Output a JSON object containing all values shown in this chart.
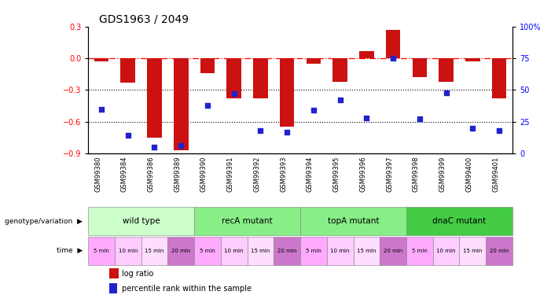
{
  "title": "GDS1963 / 2049",
  "samples": [
    "GSM99380",
    "GSM99384",
    "GSM99386",
    "GSM99389",
    "GSM99390",
    "GSM99391",
    "GSM99392",
    "GSM99393",
    "GSM99394",
    "GSM99395",
    "GSM99396",
    "GSM99397",
    "GSM99398",
    "GSM99399",
    "GSM99400",
    "GSM99401"
  ],
  "log_ratio": [
    -0.03,
    -0.23,
    -0.75,
    -0.87,
    -0.14,
    -0.38,
    -0.38,
    -0.65,
    -0.05,
    -0.22,
    0.07,
    0.27,
    -0.18,
    -0.22,
    -0.03,
    -0.38
  ],
  "percentile": [
    35,
    14,
    5,
    6,
    38,
    47,
    18,
    17,
    34,
    42,
    28,
    75,
    27,
    48,
    20,
    18
  ],
  "bar_color": "#cc1111",
  "dot_color": "#2222cc",
  "left_ylim": [
    -0.9,
    0.3
  ],
  "right_ylim": [
    0,
    100
  ],
  "left_yticks": [
    -0.9,
    -0.6,
    -0.3,
    0,
    0.3
  ],
  "right_yticks": [
    0,
    25,
    50,
    75,
    100
  ],
  "dotted_lines": [
    -0.3,
    -0.6
  ],
  "genotype_groups": [
    {
      "label": "wild type",
      "start": 0,
      "end": 4,
      "color": "#ccffcc"
    },
    {
      "label": "recA mutant",
      "start": 4,
      "end": 8,
      "color": "#88ee88"
    },
    {
      "label": "topA mutant",
      "start": 8,
      "end": 12,
      "color": "#88ee88"
    },
    {
      "label": "dnaC mutant",
      "start": 12,
      "end": 16,
      "color": "#44cc44"
    }
  ],
  "time_labels": [
    "5 min",
    "10 min",
    "15 min",
    "20 min",
    "5 min",
    "10 min",
    "15 min",
    "20 min",
    "5 min",
    "10 min",
    "15 min",
    "20 min",
    "5 min",
    "10 min",
    "15 min",
    "20 min"
  ],
  "time_colors": [
    "#ffaaff",
    "#ffccff",
    "#ffddff",
    "#cc77cc",
    "#ffaaff",
    "#ffccff",
    "#ffddff",
    "#cc77cc",
    "#ffaaff",
    "#ffccff",
    "#ffddff",
    "#cc77cc",
    "#ffaaff",
    "#ffccff",
    "#ffddff",
    "#cc77cc"
  ],
  "legend_log_ratio": "log ratio",
  "legend_percentile": "percentile rank within the sample",
  "bar_width": 0.55,
  "title_fontsize": 10,
  "tick_fontsize": 7,
  "sample_fontsize": 6,
  "annot_fontsize": 7.5
}
